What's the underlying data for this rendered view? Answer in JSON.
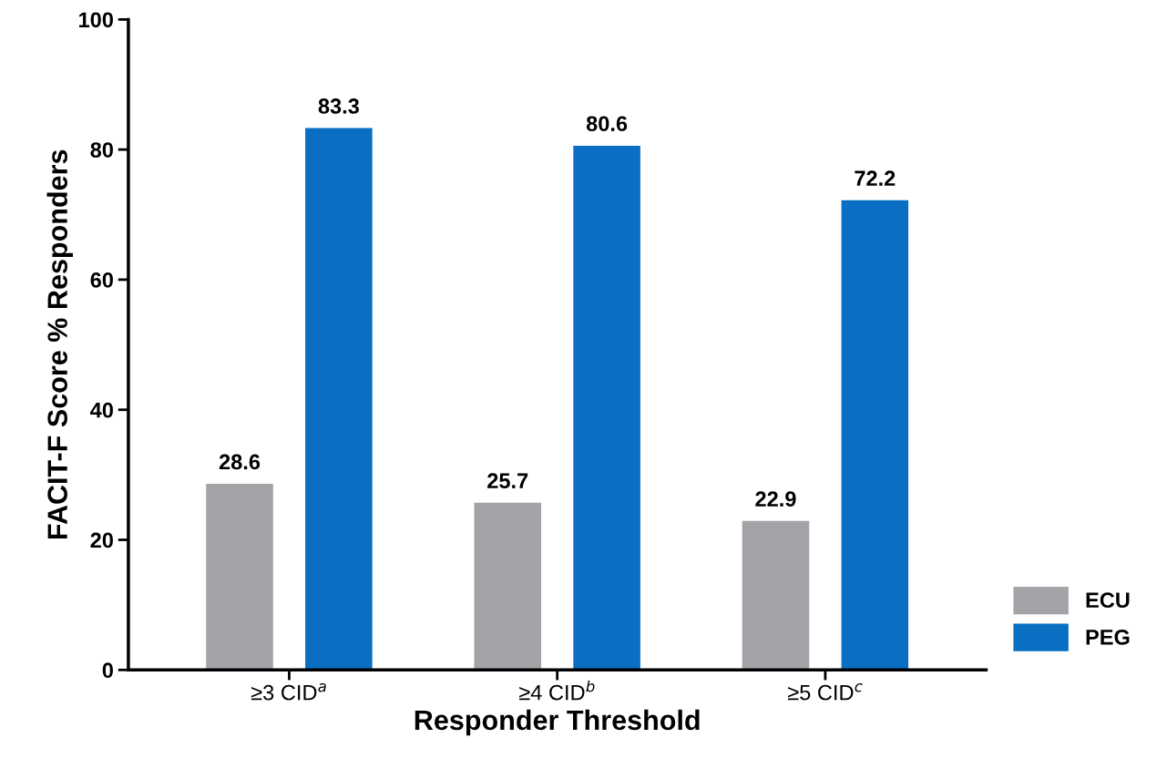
{
  "chart_data": {
    "type": "bar",
    "xlabel": "Responder Threshold",
    "ylabel": "FACIT-F Score % Responders",
    "categories": [
      "≥3 CID$^{a}$",
      "≥4 CID$^{b}$",
      "≥5 CID$^{c}$"
    ],
    "series": [
      {
        "name": "ECU",
        "color": "#a3a3a8",
        "values": [
          28.6,
          25.7,
          22.9
        ]
      },
      {
        "name": "PEG",
        "color": "#0a6fc2",
        "values": [
          83.3,
          80.6,
          72.2
        ]
      }
    ],
    "ylim": [
      0,
      100
    ],
    "yticks": [
      0,
      20,
      40,
      60,
      80,
      100
    ],
    "grid": false,
    "legend": "bottom right",
    "data_labels": true
  }
}
